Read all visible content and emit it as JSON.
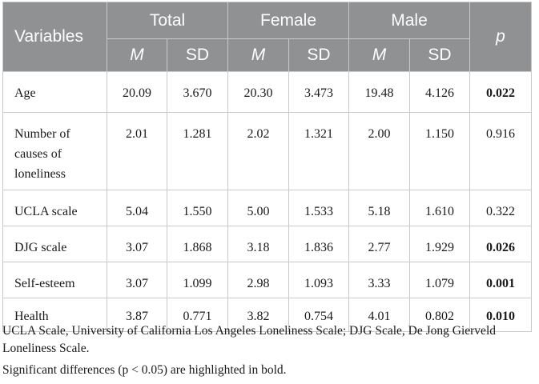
{
  "table": {
    "header": {
      "variables": "Variables",
      "groups": [
        "Total",
        "Female",
        "Male"
      ],
      "sub": [
        "M",
        "SD"
      ],
      "p": "p"
    },
    "rows": [
      {
        "label": "Age",
        "values": [
          "20.09",
          "3.670",
          "20.30",
          "3.473",
          "19.48",
          "4.126"
        ],
        "p": "0.022",
        "significant": true
      },
      {
        "label": "Number of causes of loneliness",
        "values": [
          "2.01",
          "1.281",
          "2.02",
          "1.321",
          "2.00",
          "1.150"
        ],
        "p": "0.916",
        "significant": false
      },
      {
        "label": "UCLA scale",
        "values": [
          "5.04",
          "1.550",
          "5.00",
          "1.533",
          "5.18",
          "1.610"
        ],
        "p": "0.322",
        "significant": false
      },
      {
        "label": "DJG scale",
        "values": [
          "3.07",
          "1.868",
          "3.18",
          "1.836",
          "2.77",
          "1.929"
        ],
        "p": "0.026",
        "significant": true
      },
      {
        "label": "Self-esteem",
        "values": [
          "3.07",
          "1.099",
          "2.98",
          "1.093",
          "3.33",
          "1.079"
        ],
        "p": "0.001",
        "significant": true
      },
      {
        "label": "Health",
        "values": [
          "3.87",
          "0.771",
          "3.82",
          "0.754",
          "4.01",
          "0.802"
        ],
        "p": "0.010",
        "significant": true
      }
    ]
  },
  "footnotes": {
    "abbreviations": "UCLA Scale, University of California Los Angeles Loneliness Scale; DJG Scale, De Jong Gierveld Loneliness Scale.",
    "significance": "Significant differences (p < 0.05) are highlighted in bold."
  }
}
